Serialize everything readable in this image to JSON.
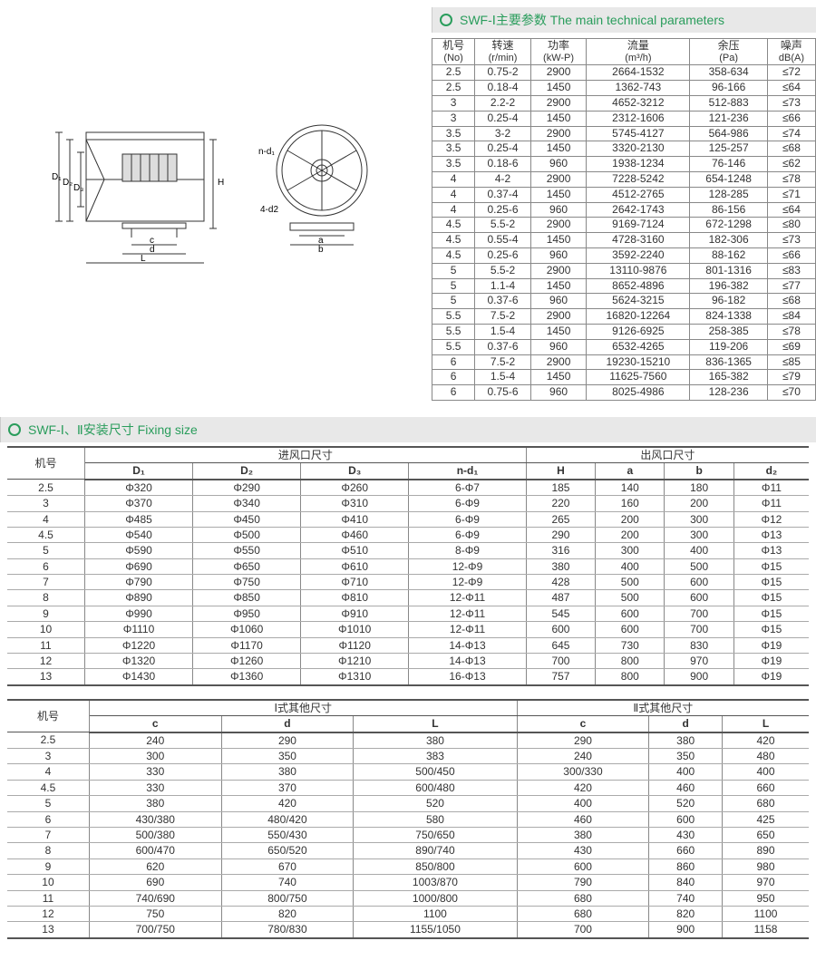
{
  "colors": {
    "accent": "#2a9d5c",
    "header_bg": "#e8e8e8",
    "border": "#888"
  },
  "section1": {
    "title": "SWF-Ⅰ主要参数 The main technical parameters"
  },
  "section2": {
    "title": "SWF-Ⅰ、Ⅱ安装尺寸 Fixing size"
  },
  "diagram_labels": {
    "D1": "D₁",
    "D2": "D₂",
    "D3": "D₃",
    "H": "H",
    "c": "c",
    "d": "d",
    "L": "L",
    "nd1": "n-d₁",
    "4d2": "4-d2",
    "a": "a",
    "b": "b"
  },
  "params": {
    "headers": [
      {
        "top": "机号",
        "sub": "(No)"
      },
      {
        "top": "转速",
        "sub": "(r/min)"
      },
      {
        "top": "功率",
        "sub": "(kW-P)"
      },
      {
        "top": "流量",
        "sub": "(m³/h)"
      },
      {
        "top": "余压",
        "sub": "(Pa)"
      },
      {
        "top": "噪声",
        "sub": "dB(A)"
      }
    ],
    "rows": [
      [
        "2.5",
        "0.75-2",
        "2900",
        "2664-1532",
        "358-634",
        "≤72"
      ],
      [
        "2.5",
        "0.18-4",
        "1450",
        "1362-743",
        "96-166",
        "≤64"
      ],
      [
        "3",
        "2.2-2",
        "2900",
        "4652-3212",
        "512-883",
        "≤73"
      ],
      [
        "3",
        "0.25-4",
        "1450",
        "2312-1606",
        "121-236",
        "≤66"
      ],
      [
        "3.5",
        "3-2",
        "2900",
        "5745-4127",
        "564-986",
        "≤74"
      ],
      [
        "3.5",
        "0.25-4",
        "1450",
        "3320-2130",
        "125-257",
        "≤68"
      ],
      [
        "3.5",
        "0.18-6",
        "960",
        "1938-1234",
        "76-146",
        "≤62"
      ],
      [
        "4",
        "4-2",
        "2900",
        "7228-5242",
        "654-1248",
        "≤78"
      ],
      [
        "4",
        "0.37-4",
        "1450",
        "4512-2765",
        "128-285",
        "≤71"
      ],
      [
        "4",
        "0.25-6",
        "960",
        "2642-1743",
        "86-156",
        "≤64"
      ],
      [
        "4.5",
        "5.5-2",
        "2900",
        "9169-7124",
        "672-1298",
        "≤80"
      ],
      [
        "4.5",
        "0.55-4",
        "1450",
        "4728-3160",
        "182-306",
        "≤73"
      ],
      [
        "4.5",
        "0.25-6",
        "960",
        "3592-2240",
        "88-162",
        "≤66"
      ],
      [
        "5",
        "5.5-2",
        "2900",
        "13110-9876",
        "801-1316",
        "≤83"
      ],
      [
        "5",
        "1.1-4",
        "1450",
        "8652-4896",
        "196-382",
        "≤77"
      ],
      [
        "5",
        "0.37-6",
        "960",
        "5624-3215",
        "96-182",
        "≤68"
      ],
      [
        "5.5",
        "7.5-2",
        "2900",
        "16820-12264",
        "824-1338",
        "≤84"
      ],
      [
        "5.5",
        "1.5-4",
        "1450",
        "9126-6925",
        "258-385",
        "≤78"
      ],
      [
        "5.5",
        "0.37-6",
        "960",
        "6532-4265",
        "119-206",
        "≤69"
      ],
      [
        "6",
        "7.5-2",
        "2900",
        "19230-15210",
        "836-1365",
        "≤85"
      ],
      [
        "6",
        "1.5-4",
        "1450",
        "11625-7560",
        "165-382",
        "≤79"
      ],
      [
        "6",
        "0.75-6",
        "960",
        "8025-4986",
        "128-236",
        "≤70"
      ]
    ]
  },
  "fixing1": {
    "group_headers": {
      "model": "机号",
      "inlet": "进风口尺寸",
      "outlet": "出风口尺寸"
    },
    "sub_headers": [
      "D₁",
      "D₂",
      "D₃",
      "n-d₁",
      "H",
      "a",
      "b",
      "d₂"
    ],
    "rows": [
      [
        "2.5",
        "Φ320",
        "Φ290",
        "Φ260",
        "6-Φ7",
        "185",
        "140",
        "180",
        "Φ11"
      ],
      [
        "3",
        "Φ370",
        "Φ340",
        "Φ310",
        "6-Φ9",
        "220",
        "160",
        "200",
        "Φ11"
      ],
      [
        "4",
        "Φ485",
        "Φ450",
        "Φ410",
        "6-Φ9",
        "265",
        "200",
        "300",
        "Φ12"
      ],
      [
        "4.5",
        "Φ540",
        "Φ500",
        "Φ460",
        "6-Φ9",
        "290",
        "200",
        "300",
        "Φ13"
      ],
      [
        "5",
        "Φ590",
        "Φ550",
        "Φ510",
        "8-Φ9",
        "316",
        "300",
        "400",
        "Φ13"
      ],
      [
        "6",
        "Φ690",
        "Φ650",
        "Φ610",
        "12-Φ9",
        "380",
        "400",
        "500",
        "Φ15"
      ],
      [
        "7",
        "Φ790",
        "Φ750",
        "Φ710",
        "12-Φ9",
        "428",
        "500",
        "600",
        "Φ15"
      ],
      [
        "8",
        "Φ890",
        "Φ850",
        "Φ810",
        "12-Φ11",
        "487",
        "500",
        "600",
        "Φ15"
      ],
      [
        "9",
        "Φ990",
        "Φ950",
        "Φ910",
        "12-Φ11",
        "545",
        "600",
        "700",
        "Φ15"
      ],
      [
        "10",
        "Φ1110",
        "Φ1060",
        "Φ1010",
        "12-Φ11",
        "600",
        "600",
        "700",
        "Φ15"
      ],
      [
        "11",
        "Φ1220",
        "Φ1170",
        "Φ1120",
        "14-Φ13",
        "645",
        "730",
        "830",
        "Φ19"
      ],
      [
        "12",
        "Φ1320",
        "Φ1260",
        "Φ1210",
        "14-Φ13",
        "700",
        "800",
        "970",
        "Φ19"
      ],
      [
        "13",
        "Φ1430",
        "Φ1360",
        "Φ1310",
        "16-Φ13",
        "757",
        "800",
        "900",
        "Φ19"
      ]
    ]
  },
  "fixing2": {
    "group_headers": {
      "model": "机号",
      "type1": "Ⅰ式其他尺寸",
      "type2": "Ⅱ式其他尺寸"
    },
    "sub_headers": [
      "c",
      "d",
      "L",
      "c",
      "d",
      "L"
    ],
    "rows": [
      [
        "2.5",
        "240",
        "290",
        "380",
        "290",
        "380",
        "420"
      ],
      [
        "3",
        "300",
        "350",
        "383",
        "240",
        "350",
        "480"
      ],
      [
        "4",
        "330",
        "380",
        "500/450",
        "300/330",
        "400",
        "400"
      ],
      [
        "4.5",
        "330",
        "370",
        "600/480",
        "420",
        "460",
        "660"
      ],
      [
        "5",
        "380",
        "420",
        "520",
        "400",
        "520",
        "680"
      ],
      [
        "6",
        "430/380",
        "480/420",
        "580",
        "460",
        "600",
        "425"
      ],
      [
        "7",
        "500/380",
        "550/430",
        "750/650",
        "380",
        "430",
        "650"
      ],
      [
        "8",
        "600/470",
        "650/520",
        "890/740",
        "430",
        "660",
        "890"
      ],
      [
        "9",
        "620",
        "670",
        "850/800",
        "600",
        "860",
        "980"
      ],
      [
        "10",
        "690",
        "740",
        "1003/870",
        "790",
        "840",
        "970"
      ],
      [
        "11",
        "740/690",
        "800/750",
        "1000/800",
        "680",
        "740",
        "950"
      ],
      [
        "12",
        "750",
        "820",
        "1100",
        "680",
        "820",
        "1100"
      ],
      [
        "13",
        "700/750",
        "780/830",
        "1155/1050",
        "700",
        "900",
        "1158"
      ]
    ]
  }
}
